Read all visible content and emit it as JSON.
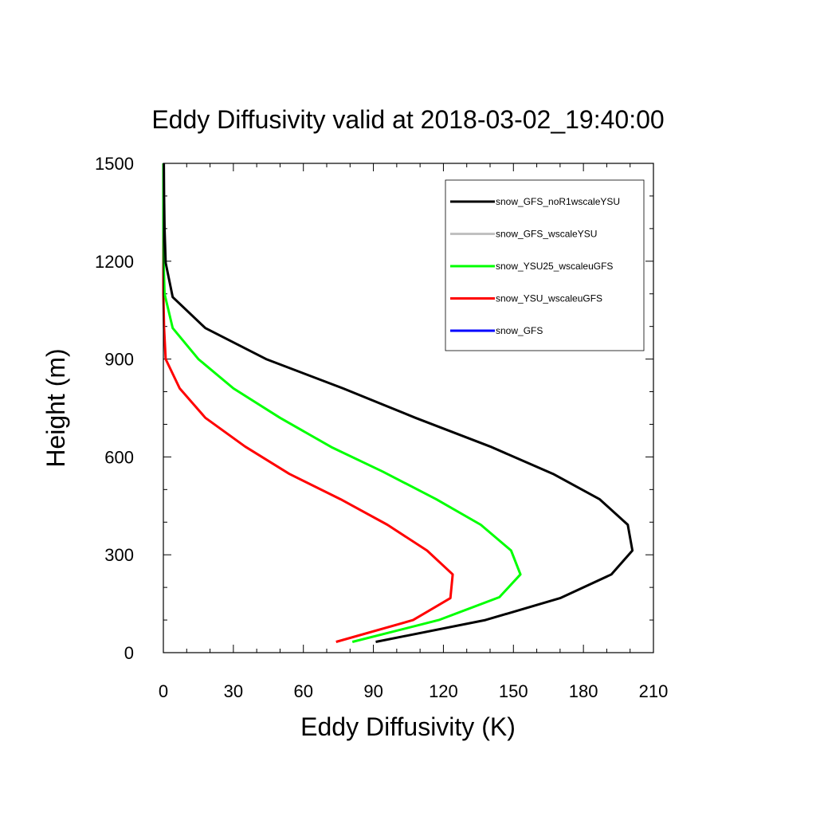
{
  "chart_data": {
    "type": "line",
    "title": "Eddy Diffusivity valid at 2018-03-02_19:40:00",
    "xlabel": "Eddy Diffusivity (K)",
    "ylabel": "Height (m)",
    "xlim": [
      0,
      210
    ],
    "ylim": [
      0,
      1500
    ],
    "x_ticks": [
      0,
      30,
      60,
      90,
      120,
      150,
      180,
      210
    ],
    "y_ticks": [
      0,
      300,
      600,
      900,
      1200,
      1500
    ],
    "legend_position": "top-right",
    "grid": false,
    "series": [
      {
        "name": "snow_GFS_noR1wscaleYSU",
        "color": "#000000",
        "points": [
          [
            91,
            33
          ],
          [
            138,
            100
          ],
          [
            170,
            167
          ],
          [
            192,
            240
          ],
          [
            201,
            313
          ],
          [
            199,
            392
          ],
          [
            187,
            470
          ],
          [
            167,
            548
          ],
          [
            140,
            632
          ],
          [
            108,
            720
          ],
          [
            77,
            810
          ],
          [
            44,
            900
          ],
          [
            18,
            995
          ],
          [
            4,
            1090
          ],
          [
            1,
            1195
          ],
          [
            0.5,
            1300
          ],
          [
            0.3,
            1400
          ],
          [
            0.2,
            1500
          ]
        ]
      },
      {
        "name": "snow_GFS_wscaleYSU",
        "color": "#c0c0c0",
        "points": []
      },
      {
        "name": "snow_YSU25_wscaleuGFS",
        "color": "#00ff00",
        "points": [
          [
            81,
            33
          ],
          [
            118,
            100
          ],
          [
            144,
            170
          ],
          [
            153,
            240
          ],
          [
            149,
            313
          ],
          [
            136,
            392
          ],
          [
            117,
            470
          ],
          [
            94,
            555
          ],
          [
            72,
            630
          ],
          [
            50,
            720
          ],
          [
            30,
            810
          ],
          [
            15,
            900
          ],
          [
            4,
            995
          ],
          [
            0.5,
            1100
          ],
          [
            0.1,
            1200
          ],
          [
            0,
            1300
          ],
          [
            0,
            1400
          ],
          [
            0,
            1500
          ]
        ]
      },
      {
        "name": "snow_YSU_wscaleuGFS",
        "color": "#ff0000",
        "points": [
          [
            74,
            33
          ],
          [
            107,
            100
          ],
          [
            123,
            167
          ],
          [
            124,
            240
          ],
          [
            113,
            313
          ],
          [
            96,
            392
          ],
          [
            76,
            470
          ],
          [
            54,
            548
          ],
          [
            35,
            632
          ],
          [
            18,
            720
          ],
          [
            7,
            810
          ],
          [
            1,
            900
          ],
          [
            0.3,
            995
          ],
          [
            0,
            1100
          ],
          [
            0,
            1200
          ],
          [
            0,
            1300
          ],
          [
            0,
            1400
          ],
          [
            0,
            1500
          ]
        ]
      },
      {
        "name": "snow_GFS",
        "color": "#0000ff",
        "points": []
      }
    ]
  }
}
